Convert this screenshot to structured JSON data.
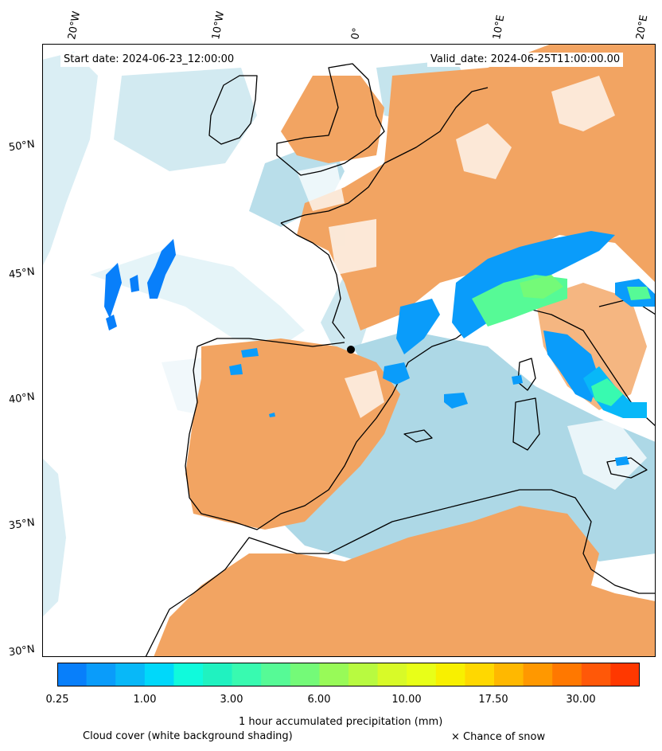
{
  "map": {
    "start_date": "Start date: 2024-06-23_12:00:00",
    "valid_date": "Valid_date: 2024-06-25T11:00:00.00",
    "lon_labels": [
      "20°W",
      "10°W",
      "0°",
      "10°E",
      "20°E"
    ],
    "lat_labels": [
      "50°N",
      "45°N",
      "40°N",
      "35°N",
      "30°N"
    ],
    "colors": {
      "cloud_orange": "#f2a462",
      "cloud_blue": "#add8e6",
      "coast": "#000000"
    }
  },
  "colorbar": {
    "label": "1 hour accumulated precipitation (mm)",
    "tick_labels": [
      "0.25",
      "1.00",
      "3.00",
      "6.00",
      "10.00",
      "17.50",
      "30.00"
    ],
    "colors": [
      "#087ffa",
      "#0a9cfa",
      "#08b8f8",
      "#00d8fa",
      "#10fadc",
      "#20f2c0",
      "#38fab0",
      "#56fa96",
      "#74fa78",
      "#98fa58",
      "#b8fa40",
      "#d8fa28",
      "#e8ff18",
      "#f8f000",
      "#ffd800",
      "#ffb800",
      "#ff9800",
      "#ff7800",
      "#ff5808",
      "#ff3800"
    ]
  },
  "legend": {
    "cloud_cover": "Cloud cover (white background shading)",
    "snow": "× Chance of snow"
  }
}
